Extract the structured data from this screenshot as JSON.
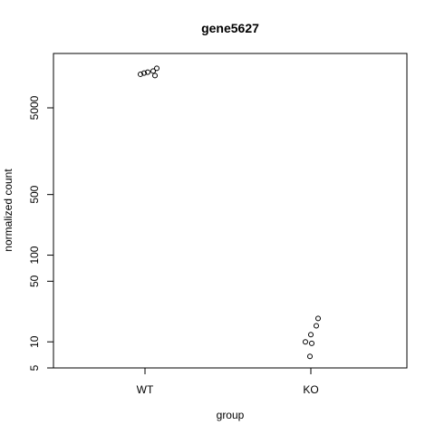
{
  "chart_data": {
    "type": "scatter",
    "title": "gene5627",
    "xlabel": "group",
    "ylabel": "normalized count",
    "categories": [
      "WT",
      "KO"
    ],
    "y_scale": "log",
    "ylim": [
      4.5,
      20000
    ],
    "yticks": [
      5,
      10,
      50,
      100,
      500,
      5000
    ],
    "series": [
      {
        "category": "WT",
        "values": [
          12200,
          12600,
          13300,
          11800,
          12900,
          14300
        ]
      },
      {
        "category": "KO",
        "values": [
          6.8,
          9.6,
          10.0,
          12.1,
          15.3,
          18.6
        ]
      }
    ],
    "grid": false,
    "legend": "none"
  }
}
